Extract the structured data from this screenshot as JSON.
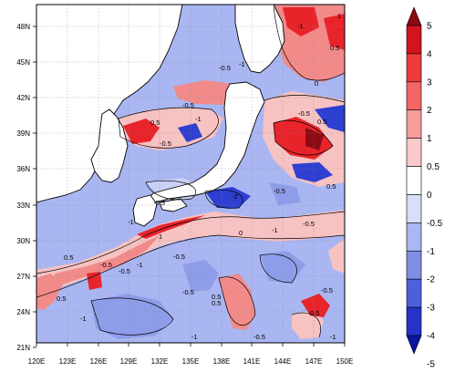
{
  "map": {
    "lat_ticks": [
      "48N",
      "45N",
      "42N",
      "39N",
      "36N",
      "33N",
      "30N",
      "27N",
      "24N",
      "21N"
    ],
    "lon_ticks": [
      "120E",
      "123E",
      "126E",
      "129E",
      "132E",
      "135E",
      "138E",
      "141E",
      "144E",
      "147E",
      "150E"
    ],
    "contour_labels": [
      "-1",
      "-0.5",
      "0.5",
      "1",
      "-0.5",
      "-1",
      "0",
      "0.5",
      "-0.5",
      "-1",
      "-2",
      "-0.5",
      "0.5",
      "-0.5",
      "-1",
      "0.5",
      "-0.5",
      "-1",
      "-0.5",
      "0.5",
      "-0.5",
      "-1",
      "0.5",
      "-0.5",
      "0",
      "-1",
      "-0.5",
      "0.5",
      "-0.5",
      "-1",
      "-0.5",
      "0.5",
      "-1",
      "-0.5",
      "0.5",
      "1"
    ],
    "colors": {
      "ocean_base": "#a9b6f2",
      "land": "#ffffff",
      "strong_red": "#e8242a",
      "mid_red": "#f28a8a",
      "light_red": "#f7c2c2",
      "light_blue": "#c9d0f5",
      "mid_blue": "#8e9de9",
      "strong_blue": "#2e3fd2"
    }
  },
  "colorbar": {
    "labels": [
      "5",
      "4",
      "3",
      "2",
      "1",
      "0.5",
      "0",
      "-0.5",
      "-1",
      "-2",
      "-3",
      "-4",
      "-5"
    ],
    "colors": [
      "#8b0a14",
      "#d1141d",
      "#ef3b3b",
      "#f46666",
      "#f89b9b",
      "#fbc9c9",
      "#ffffff",
      "#d8def8",
      "#aab6f0",
      "#7f8fe6",
      "#4d60dc",
      "#2533c8",
      "#0a14a0"
    ]
  }
}
